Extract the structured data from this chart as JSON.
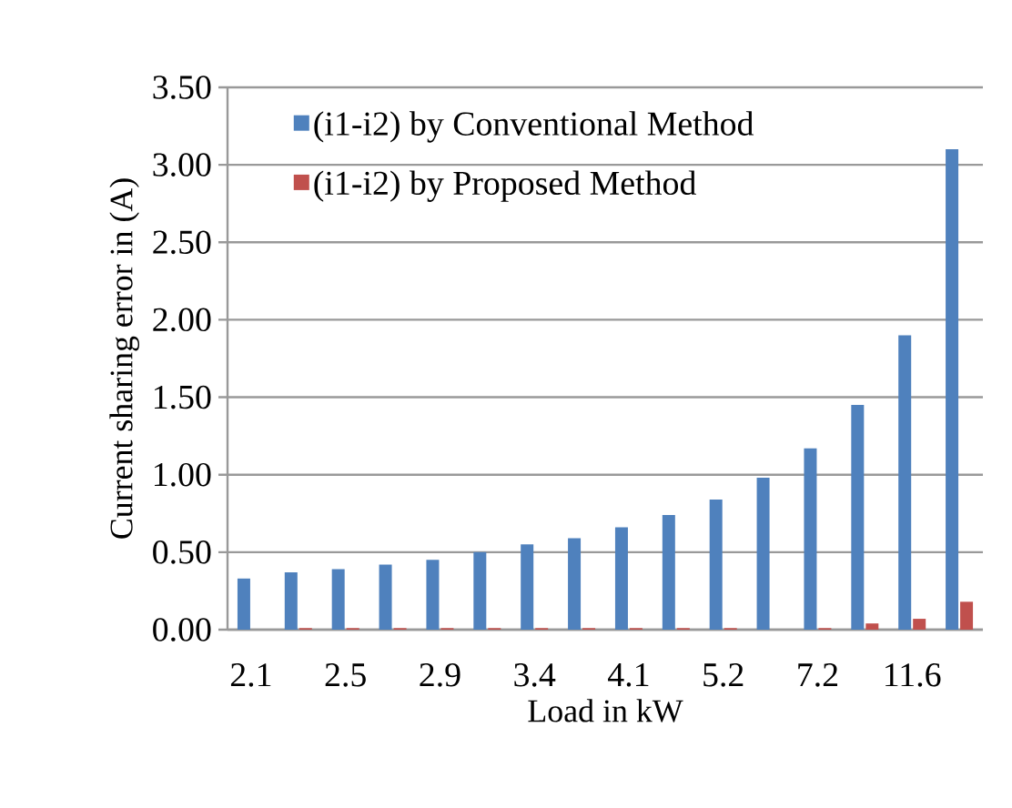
{
  "chart_data": {
    "type": "bar",
    "xlabel": "Load in kW",
    "ylabel": "Current sharing error in (A)",
    "categories": [
      "2.1",
      null,
      "2.5",
      null,
      "2.9",
      null,
      "3.4",
      null,
      "4.1",
      null,
      "5.2",
      null,
      "7.2",
      null,
      "11.6",
      null
    ],
    "series": [
      {
        "name": "(i1-i2) by Conventional Method",
        "color": "#4f81bd",
        "values": [
          0.33,
          0.37,
          0.39,
          0.42,
          0.45,
          0.5,
          0.55,
          0.59,
          0.66,
          0.74,
          0.84,
          0.98,
          1.17,
          1.45,
          1.9,
          3.1
        ]
      },
      {
        "name": "(i1-i2) by Proposed Method",
        "color": "#c0504d",
        "values": [
          0.0,
          0.01,
          0.01,
          0.01,
          0.01,
          0.01,
          0.01,
          0.01,
          0.01,
          0.01,
          0.01,
          0.0,
          0.01,
          0.04,
          0.07,
          0.18
        ]
      }
    ],
    "ylim": [
      0,
      3.5
    ],
    "yticks": [
      {
        "value": 0,
        "label": "0.00"
      },
      {
        "value": 0.5,
        "label": "0.50"
      },
      {
        "value": 1,
        "label": "1.00"
      },
      {
        "value": 1.5,
        "label": "1.50"
      },
      {
        "value": 2,
        "label": "2.00"
      },
      {
        "value": 2.5,
        "label": "2.50"
      },
      {
        "value": 3,
        "label": "3.00"
      },
      {
        "value": 3.5,
        "label": "3.50"
      }
    ],
    "grid": "y",
    "legend": "top left"
  }
}
